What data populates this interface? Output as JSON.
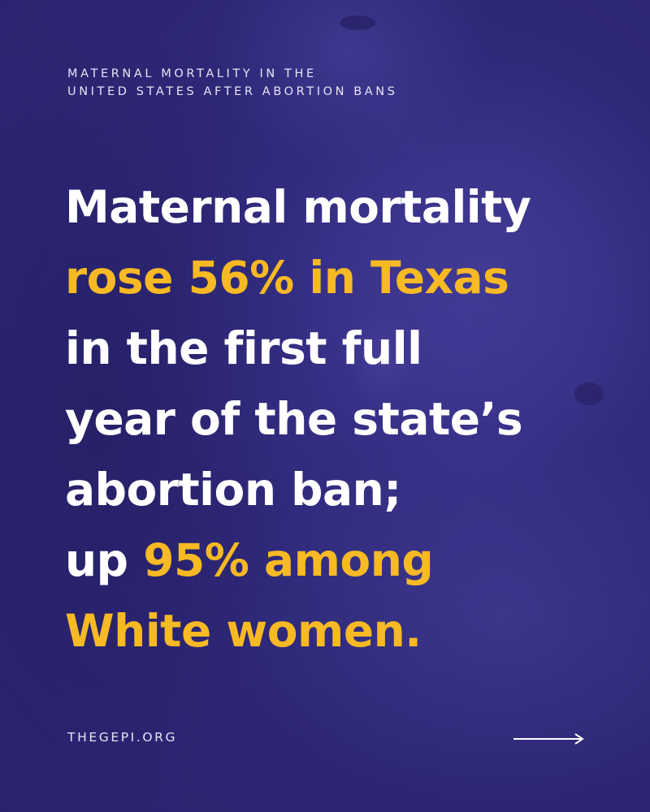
{
  "eyebrow": {
    "line1": "MATERNAL MORTALITY IN THE",
    "line2": "UNITED STATES AFTER ABORTION BANS"
  },
  "headline": {
    "line1": "Maternal mortality",
    "line2": "rose 56% in Texas",
    "line3": "in the first full",
    "line4": "year of the state’s",
    "line5": "abortion ban;",
    "line6_prefix": "up ",
    "line6_highlight": "95% among",
    "line7": "White women."
  },
  "footer": {
    "link": "THEGEPI.ORG",
    "arrow_icon": "arrow-right-icon"
  },
  "colors": {
    "background": "#2f2a7a",
    "text": "#ffffff",
    "highlight": "#f7b924",
    "muted": "#e6e4f5"
  }
}
